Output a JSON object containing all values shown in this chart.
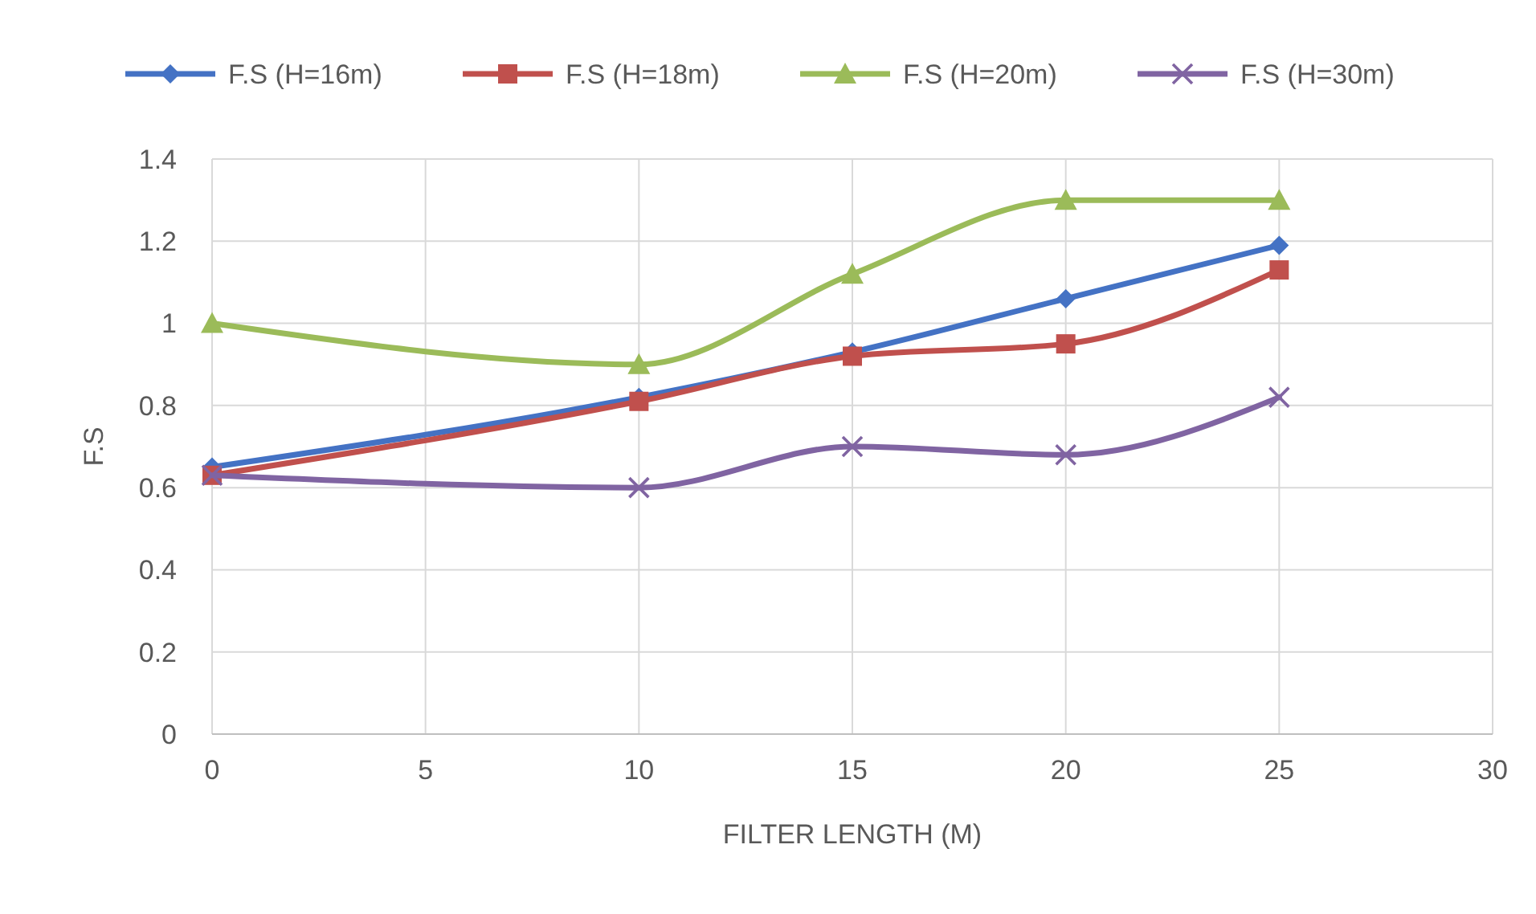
{
  "chart_data": {
    "type": "line",
    "xlabel": "FILTER LENGTH (M)",
    "ylabel": "F.S",
    "x": [
      0,
      10,
      15,
      20,
      25
    ],
    "series": [
      {
        "name": "F.S (H=16m)",
        "color": "#4472c4",
        "marker": "diamond",
        "values": [
          0.65,
          0.82,
          0.93,
          1.06,
          1.19
        ]
      },
      {
        "name": "F.S (H=18m)",
        "color": "#c0504d",
        "marker": "square",
        "values": [
          0.63,
          0.81,
          0.92,
          0.95,
          1.13
        ]
      },
      {
        "name": "F.S (H=20m)",
        "color": "#9bbb59",
        "marker": "triangle",
        "values": [
          1.0,
          0.9,
          1.12,
          1.3,
          1.3
        ]
      },
      {
        "name": "F.S (H=30m)",
        "color": "#8064a2",
        "marker": "cross",
        "values": [
          0.63,
          0.6,
          0.7,
          0.68,
          0.82
        ]
      }
    ],
    "xlim": [
      0,
      30
    ],
    "xticks": [
      0,
      5,
      10,
      15,
      20,
      25,
      30
    ],
    "ylim": [
      0,
      1.4
    ],
    "yticks": [
      {
        "value": 0,
        "label": "0"
      },
      0.2,
      0.4,
      0.6,
      0.8,
      {
        "value": 1,
        "label": "1"
      },
      1.2,
      1.4
    ],
    "grid": true,
    "legend": "top",
    "line_style": "solid"
  }
}
